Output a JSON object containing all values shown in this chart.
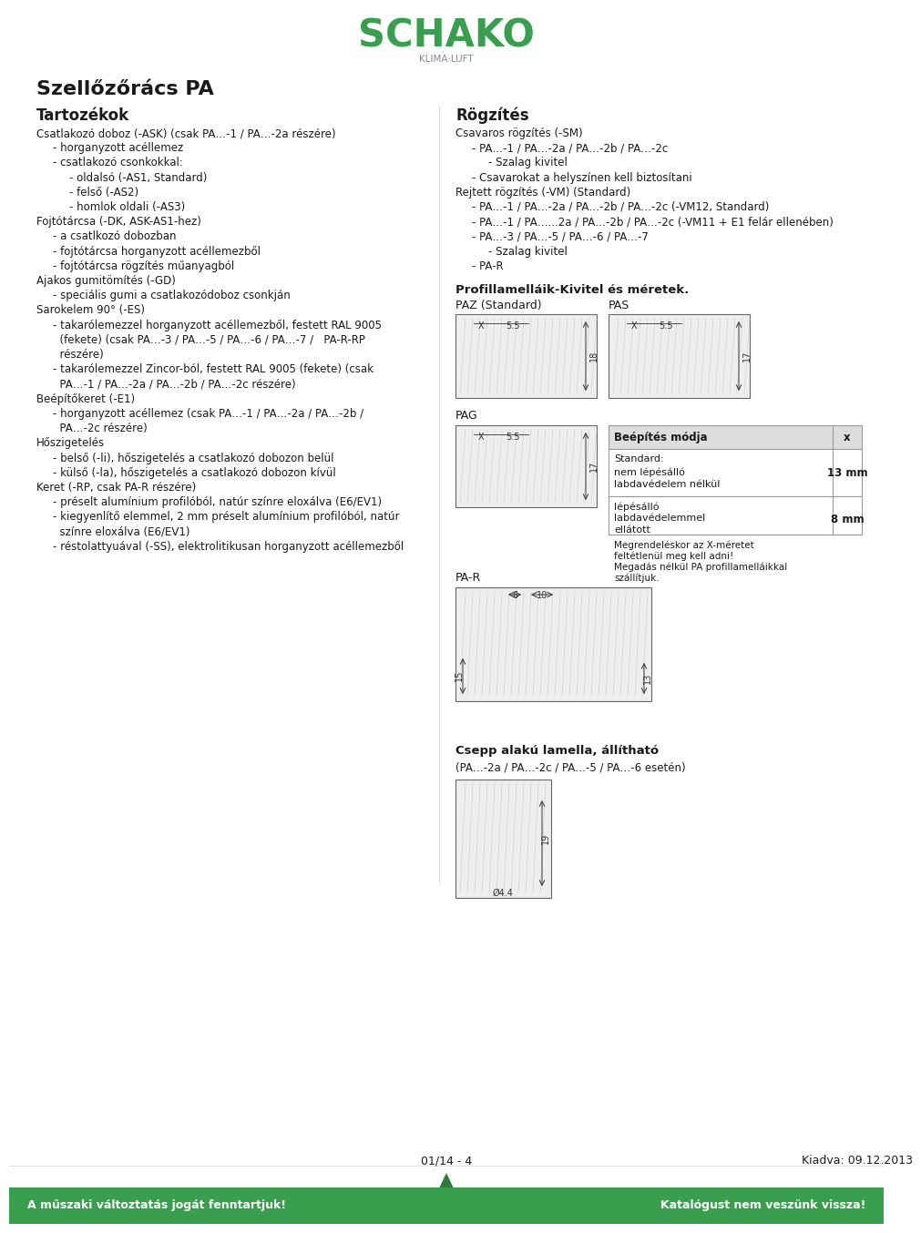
{
  "title": "Szellőzőrács PA",
  "background_color": "#ffffff",
  "green_color": "#3a9e4f",
  "dark_green": "#2d7a3a",
  "text_color": "#1a1a1a",
  "gray_text": "#555555",
  "footer_bg": "#3a9e4f",
  "footer_left": "A műszaki változtatás jogát fenntartjuk!",
  "footer_right": "Katalógust nem veszünk vissza!",
  "footer_center": "01/14 - 4",
  "footer_right_date": "Kiadva: 09.12.2013",
  "left_section_title": "Tartozékok",
  "right_section_title": "Rögzítés",
  "left_lines": [
    {
      "text": "Csatlakozó doboz (-ASK) (csak PA…-1 / PA…-2a részére)",
      "indent": 0
    },
    {
      "text": "- horganyzott acéllemez",
      "indent": 1
    },
    {
      "text": "- csatlakozó csonkokkal:",
      "indent": 1
    },
    {
      "text": "- oldalsó (-AS1, Standard)",
      "indent": 2
    },
    {
      "text": "- felső (-AS2)",
      "indent": 2
    },
    {
      "text": "- homlok oldali (-AS3)",
      "indent": 2
    },
    {
      "text": "Fojtótárcsa (-DK, ASK-AS1-hez)",
      "indent": 0
    },
    {
      "text": "- a csatlkozó dobozban",
      "indent": 1
    },
    {
      "text": "- fojtótárcsa horganyzott acéllemezből",
      "indent": 1
    },
    {
      "text": "- fojtótárcsa rögzítés műanyagból",
      "indent": 1
    },
    {
      "text": "Ajakos gumitömítés (-GD)",
      "indent": 0
    },
    {
      "text": "- speciális gumi a csatlakozódoboz csonkján",
      "indent": 1
    },
    {
      "text": "Sarokelem 90° (-ES)",
      "indent": 0
    },
    {
      "text": "- takarólemezzel horganyzott acéllemezből, festett RAL 9005",
      "indent": 1
    },
    {
      "text": "  (fekete) (csak PA…-3 / PA…-5 / PA…-6 / PA…-7 /   PA-R-RP",
      "indent": 1
    },
    {
      "text": "  részére)",
      "indent": 1
    },
    {
      "text": "- takarólemezzel Zincor-ból, festett RAL 9005 (fekete) (csak",
      "indent": 1
    },
    {
      "text": "  PA…-1 / PA…-2a / PA…-2b / PA…-2c részére)",
      "indent": 1
    },
    {
      "text": "Beépítőkeret (-E1)",
      "indent": 0
    },
    {
      "text": "- horganyzott acéllemez (csak PA…-1 / PA…-2a / PA…-2b /",
      "indent": 1
    },
    {
      "text": "  PA…-2c részére)",
      "indent": 1
    },
    {
      "text": "Hőszigetelés",
      "indent": 0
    },
    {
      "text": "- belső (-li), hőszigetelés a csatlakozó dobozon belül",
      "indent": 1
    },
    {
      "text": "- külső (-la), hőszigetelés a csatlakozó dobozon kívül",
      "indent": 1
    },
    {
      "text": "Keret (-RP, csak PA-R részére)",
      "indent": 0
    },
    {
      "text": "- préselt alumínium profilóból, natúr színre eloxálva (E6/EV1)",
      "indent": 1
    },
    {
      "text": "- kiegyenlítő elemmel, 2 mm préselt alumínium profilóból, natúr",
      "indent": 1
    },
    {
      "text": "  színre eloxálva (E6/EV1)",
      "indent": 1
    },
    {
      "text": "- réstolattyuával (-SS), elektrolitikusan horganyzott acéllemezből",
      "indent": 1
    }
  ],
  "right_lines": [
    {
      "text": "Csavaros rögzítés (-SM)",
      "indent": 0
    },
    {
      "text": "- PA…-1 / PA…-2a / PA…-2b / PA…-2c",
      "indent": 1
    },
    {
      "text": "- Szalag kivitel",
      "indent": 2
    },
    {
      "text": "- Csavarokat a helyszínen kell biztosítani",
      "indent": 1
    },
    {
      "text": "Rejtett rögzítés (-VM) (Standard)",
      "indent": 0
    },
    {
      "text": "- PA…-1 / PA…-2a / PA…-2b / PA…-2c (-VM12, Standard)",
      "indent": 1
    },
    {
      "text": "- PA…-1 / PA…...2a / PA…-2b / PA…-2c (-VM11 + E1 felár ellenében)",
      "indent": 1
    },
    {
      "text": "- PA…-3 / PA…-5 / PA…-6 / PA…-7",
      "indent": 1
    },
    {
      "text": "- Szalag kivitel",
      "indent": 2
    },
    {
      "text": "- PA-R",
      "indent": 1
    }
  ],
  "profillamellak_title": "Profillamelláik-Kivitel és méretek.",
  "paz_label": "PAZ (Standard)",
  "pas_label": "PAS",
  "pag_label": "PAG",
  "par_label": "PA-R",
  "csepp_title": "Csepp alakú lamella, állítható",
  "csepp_sub": "(PA…-2a / PA…-2c / PA…-5 / PA…-6 esetén)",
  "beepites_title": "Beépítés módja",
  "beepites_x": "x",
  "beepites_row1_label1": "Standard:",
  "beepites_row1_label2": "nem lépésálló",
  "beepites_row1_label3": "labdavédelem nélkül",
  "beepites_row1_value": "13 mm",
  "beepites_row2_label1": "lépésálló",
  "beepites_row2_label2": "labdavédelemmel",
  "beepites_row2_label3": "ellátott",
  "beepites_row2_value": "8 mm",
  "beepites_note1": "Megrendeléskor az X-méretet",
  "beepites_note2": "feltétlenül meg kell adni!",
  "beepites_note3": "Megadás nélkül PA profillamelláikkal",
  "beepites_note4": "szállítjuk."
}
